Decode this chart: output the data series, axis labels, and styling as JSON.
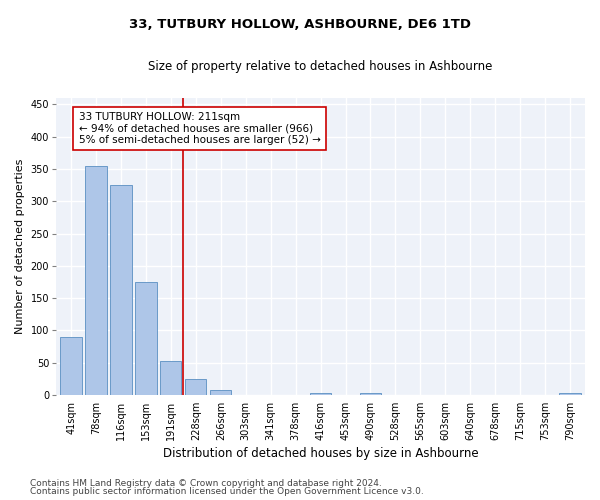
{
  "title": "33, TUTBURY HOLLOW, ASHBOURNE, DE6 1TD",
  "subtitle": "Size of property relative to detached houses in Ashbourne",
  "xlabel": "Distribution of detached houses by size in Ashbourne",
  "ylabel": "Number of detached properties",
  "bar_labels": [
    "41sqm",
    "78sqm",
    "116sqm",
    "153sqm",
    "191sqm",
    "228sqm",
    "266sqm",
    "303sqm",
    "341sqm",
    "378sqm",
    "416sqm",
    "453sqm",
    "490sqm",
    "528sqm",
    "565sqm",
    "603sqm",
    "640sqm",
    "678sqm",
    "715sqm",
    "753sqm",
    "790sqm"
  ],
  "bar_values": [
    90,
    355,
    325,
    175,
    53,
    25,
    8,
    0,
    0,
    0,
    4,
    0,
    4,
    0,
    0,
    0,
    0,
    0,
    0,
    0,
    4
  ],
  "bar_color": "#aec6e8",
  "bar_edgecolor": "#5a8fc2",
  "annotation_text_line1": "33 TUTBURY HOLLOW: 211sqm",
  "annotation_text_line2": "← 94% of detached houses are smaller (966)",
  "annotation_text_line3": "5% of semi-detached houses are larger (52) →",
  "vline_color": "#cc0000",
  "annotation_box_edgecolor": "#cc0000",
  "ylim": [
    0,
    460
  ],
  "yticks": [
    0,
    50,
    100,
    150,
    200,
    250,
    300,
    350,
    400,
    450
  ],
  "footer_line1": "Contains HM Land Registry data © Crown copyright and database right 2024.",
  "footer_line2": "Contains public sector information licensed under the Open Government Licence v3.0.",
  "bg_color": "#eef2f9",
  "grid_color": "#ffffff",
  "title_fontsize": 9.5,
  "subtitle_fontsize": 8.5,
  "ylabel_fontsize": 8,
  "xlabel_fontsize": 8.5,
  "tick_fontsize": 7,
  "annotation_fontsize": 7.5,
  "footer_fontsize": 6.5
}
